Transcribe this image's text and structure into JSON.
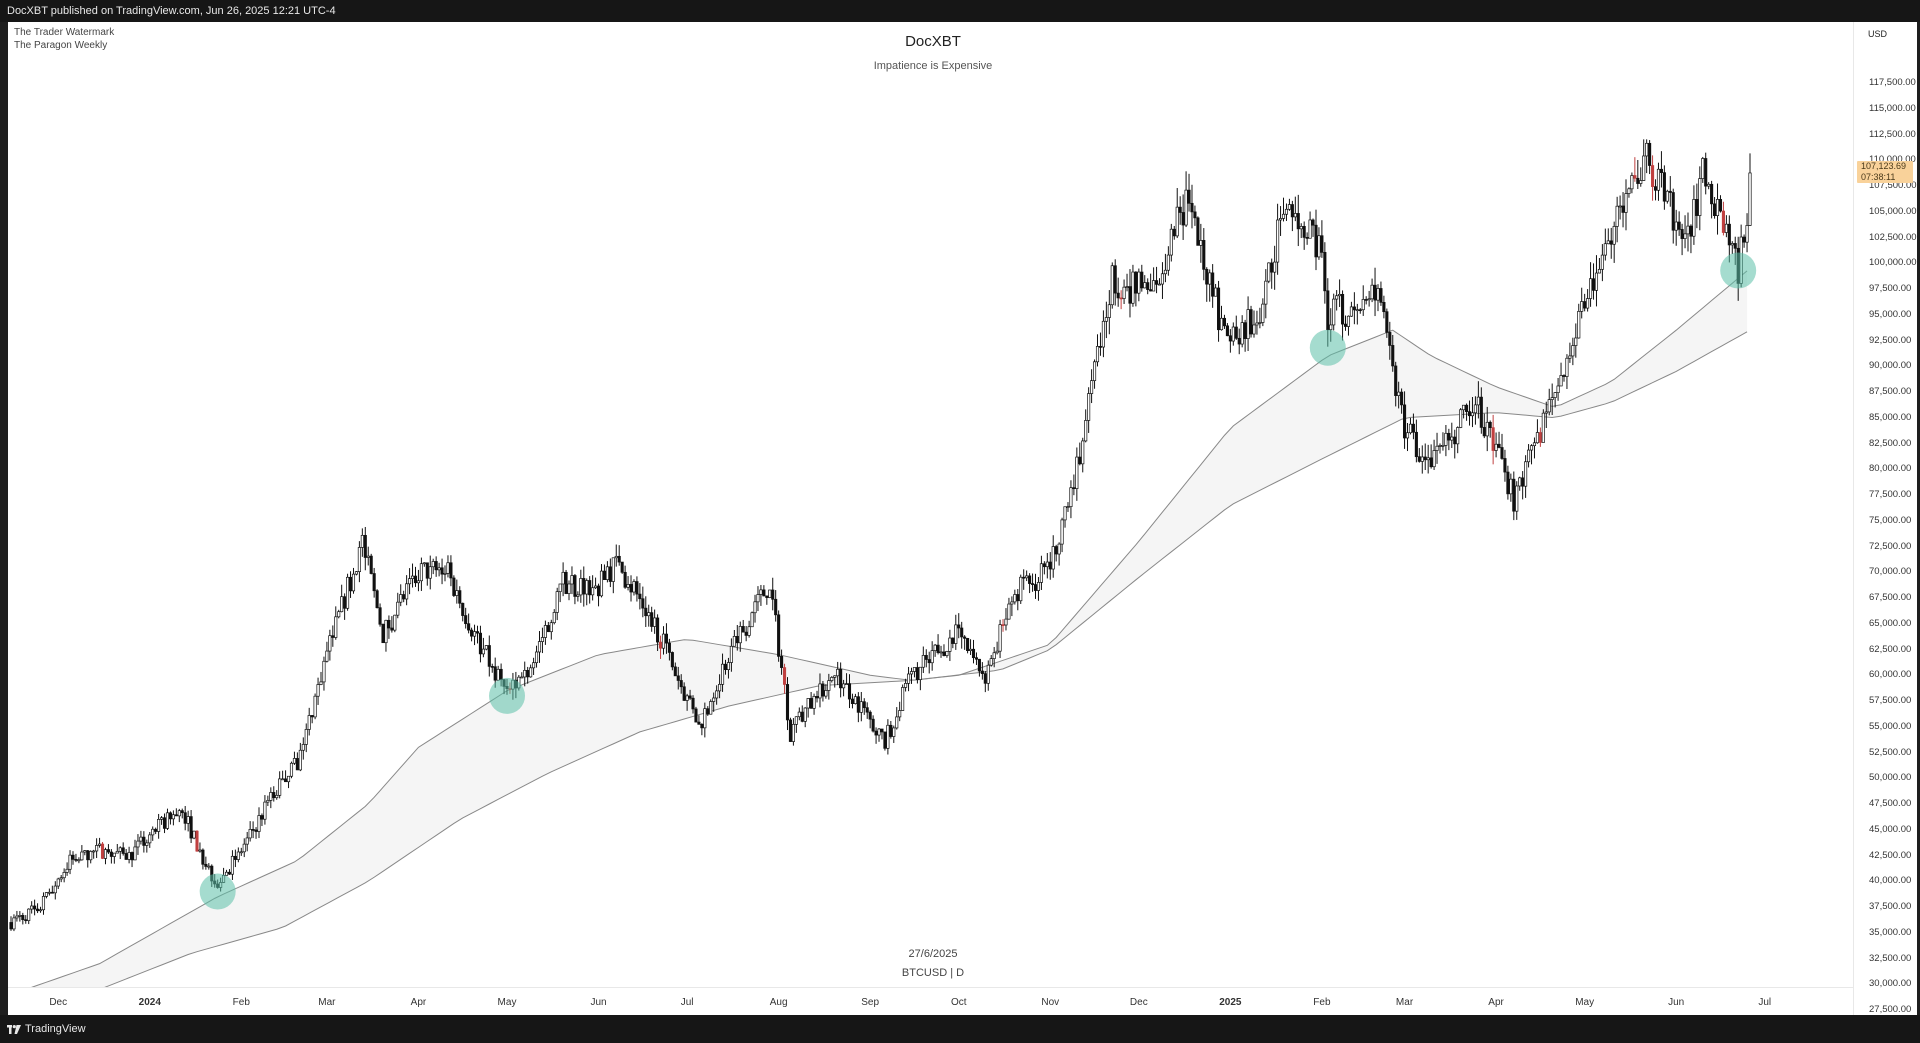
{
  "header": {
    "published_line": "DocXBT published on TradingView.com, Jun 26, 2025 12:21 UTC-4"
  },
  "watermarks": [
    "The Trader Watermark",
    "The Paragon Weekly"
  ],
  "chart_data": {
    "type": "candlestick",
    "title": "DocXBT",
    "subtitle": "Impatience is Expensive",
    "symbol_label": "BTCUSD | D",
    "date_label": "27/6/2025",
    "currency": "USD",
    "ylim": [
      26000,
      119500
    ],
    "y_ticks": [
      "117,500.00",
      "115,000.00",
      "112,500.00",
      "110,000.00",
      "107,500.00",
      "105,000.00",
      "102,500.00",
      "100,000.00",
      "97,500.00",
      "95,000.00",
      "92,500.00",
      "90,000.00",
      "87,500.00",
      "85,000.00",
      "82,500.00",
      "80,000.00",
      "77,500.00",
      "75,000.00",
      "72,500.00",
      "70,000.00",
      "67,500.00",
      "65,000.00",
      "62,500.00",
      "60,000.00",
      "57,500.00",
      "55,000.00",
      "52,500.00",
      "50,000.00",
      "47,500.00",
      "45,000.00",
      "42,500.00",
      "40,000.00",
      "37,500.00",
      "35,000.00",
      "32,500.00",
      "30,000.00",
      "27,500.00"
    ],
    "x_ticks": [
      {
        "label": "Dec",
        "bold": false
      },
      {
        "label": "2024",
        "bold": true
      },
      {
        "label": "Feb",
        "bold": false
      },
      {
        "label": "Mar",
        "bold": false
      },
      {
        "label": "Apr",
        "bold": false
      },
      {
        "label": "May",
        "bold": false
      },
      {
        "label": "Jun",
        "bold": false
      },
      {
        "label": "Jul",
        "bold": false
      },
      {
        "label": "Aug",
        "bold": false
      },
      {
        "label": "Sep",
        "bold": false
      },
      {
        "label": "Oct",
        "bold": false
      },
      {
        "label": "Nov",
        "bold": false
      },
      {
        "label": "Dec",
        "bold": false
      },
      {
        "label": "2025",
        "bold": true
      },
      {
        "label": "Feb",
        "bold": false
      },
      {
        "label": "Mar",
        "bold": false
      },
      {
        "label": "Apr",
        "bold": false
      },
      {
        "label": "May",
        "bold": false
      },
      {
        "label": "Jun",
        "bold": false
      },
      {
        "label": "Jul",
        "bold": false
      }
    ],
    "price_path": [
      [
        "2023-11-15",
        36000
      ],
      [
        "2023-11-25",
        37500
      ],
      [
        "2023-12-05",
        42000
      ],
      [
        "2023-12-15",
        43000
      ],
      [
        "2023-12-25",
        42500
      ],
      [
        "2024-01-05",
        45500
      ],
      [
        "2024-01-12",
        47000
      ],
      [
        "2024-01-20",
        41500
      ],
      [
        "2024-01-24",
        39800
      ],
      [
        "2024-02-01",
        43000
      ],
      [
        "2024-02-12",
        48500
      ],
      [
        "2024-02-20",
        51500
      ],
      [
        "2024-03-01",
        62000
      ],
      [
        "2024-03-13",
        73000
      ],
      [
        "2024-03-20",
        64000
      ],
      [
        "2024-04-01",
        70000
      ],
      [
        "2024-04-10",
        70500
      ],
      [
        "2024-04-20",
        64000
      ],
      [
        "2024-05-01",
        58000
      ],
      [
        "2024-05-10",
        61500
      ],
      [
        "2024-05-20",
        69000
      ],
      [
        "2024-06-01",
        68500
      ],
      [
        "2024-06-07",
        71000
      ],
      [
        "2024-06-20",
        65000
      ],
      [
        "2024-07-05",
        55000
      ],
      [
        "2024-07-15",
        62000
      ],
      [
        "2024-07-29",
        69000
      ],
      [
        "2024-08-05",
        54500
      ],
      [
        "2024-08-20",
        60500
      ],
      [
        "2024-09-06",
        53500
      ],
      [
        "2024-09-15",
        60000
      ],
      [
        "2024-09-30",
        64000
      ],
      [
        "2024-10-10",
        60000
      ],
      [
        "2024-10-20",
        68000
      ],
      [
        "2024-10-31",
        70000
      ],
      [
        "2024-11-10",
        80000
      ],
      [
        "2024-11-22",
        98500
      ],
      [
        "2024-12-05",
        97000
      ],
      [
        "2024-12-17",
        106000
      ],
      [
        "2024-12-30",
        93000
      ],
      [
        "2025-01-10",
        94500
      ],
      [
        "2025-01-20",
        106000
      ],
      [
        "2025-01-31",
        102000
      ],
      [
        "2025-02-03",
        95000
      ],
      [
        "2025-02-20",
        96500
      ],
      [
        "2025-03-01",
        84000
      ],
      [
        "2025-03-10",
        80000
      ],
      [
        "2025-03-25",
        87000
      ],
      [
        "2025-04-07",
        77000
      ],
      [
        "2025-04-21",
        87500
      ],
      [
        "2025-05-01",
        96000
      ],
      [
        "2025-05-12",
        104000
      ],
      [
        "2025-05-22",
        110000
      ],
      [
        "2025-06-05",
        102000
      ],
      [
        "2025-06-10",
        109000
      ],
      [
        "2025-06-17",
        104500
      ],
      [
        "2025-06-22",
        99500
      ],
      [
        "2025-06-26",
        107100
      ]
    ],
    "ma_fast": [
      [
        "2023-11-15",
        29000
      ],
      [
        "2023-12-15",
        32000
      ],
      [
        "2024-01-24",
        38500
      ],
      [
        "2024-02-20",
        42000
      ],
      [
        "2024-03-15",
        47500
      ],
      [
        "2024-04-01",
        53000
      ],
      [
        "2024-05-01",
        58500
      ],
      [
        "2024-06-01",
        62000
      ],
      [
        "2024-07-01",
        63500
      ],
      [
        "2024-08-01",
        62000
      ],
      [
        "2024-09-01",
        60000
      ],
      [
        "2024-09-15",
        59500
      ],
      [
        "2024-10-01",
        60000
      ],
      [
        "2024-11-01",
        63000
      ],
      [
        "2024-12-01",
        73000
      ],
      [
        "2025-01-01",
        84000
      ],
      [
        "2025-02-03",
        91000
      ],
      [
        "2025-02-25",
        93500
      ],
      [
        "2025-03-10",
        91000
      ],
      [
        "2025-04-01",
        88000
      ],
      [
        "2025-04-21",
        86000
      ],
      [
        "2025-05-10",
        88500
      ],
      [
        "2025-06-01",
        93500
      ],
      [
        "2025-06-26",
        99500
      ]
    ],
    "ma_slow": [
      [
        "2023-11-15",
        27500
      ],
      [
        "2023-12-15",
        29500
      ],
      [
        "2024-01-15",
        33000
      ],
      [
        "2024-02-15",
        35500
      ],
      [
        "2024-03-15",
        40000
      ],
      [
        "2024-04-15",
        46000
      ],
      [
        "2024-05-15",
        50500
      ],
      [
        "2024-06-15",
        54500
      ],
      [
        "2024-07-15",
        57000
      ],
      [
        "2024-08-15",
        59000
      ],
      [
        "2024-09-15",
        59500
      ],
      [
        "2024-10-15",
        60500
      ],
      [
        "2024-11-01",
        62500
      ],
      [
        "2024-12-01",
        69500
      ],
      [
        "2025-01-01",
        76500
      ],
      [
        "2025-02-01",
        81000
      ],
      [
        "2025-03-01",
        85000
      ],
      [
        "2025-04-01",
        85500
      ],
      [
        "2025-04-21",
        85000
      ],
      [
        "2025-05-10",
        86500
      ],
      [
        "2025-06-01",
        89500
      ],
      [
        "2025-06-26",
        93500
      ]
    ],
    "highlight_points": [
      [
        "2024-01-24",
        39000
      ],
      [
        "2024-05-01",
        58000
      ],
      [
        "2025-02-03",
        91800
      ],
      [
        "2025-06-22",
        99300
      ]
    ],
    "last_price": "107,123.69",
    "countdown": "07:38:11",
    "colors": {
      "candle": "#111111",
      "band_fill": "#eeeeee",
      "ma_line": "#888888",
      "highlight": "#5bbfa8",
      "price_badge": "#f9d29a",
      "bearish_accent": "#c04040"
    }
  },
  "footer": {
    "brand": "TradingView",
    "icon": "tradingview-logo-icon"
  }
}
